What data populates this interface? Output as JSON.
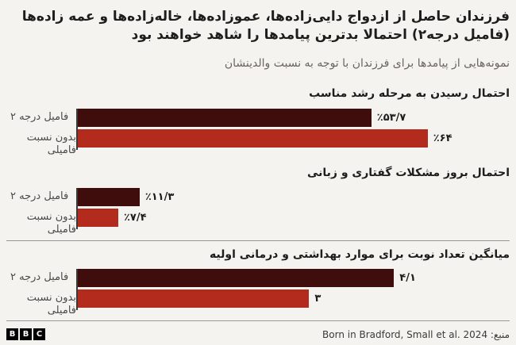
{
  "page": {
    "title": "فرزندان حاصل از ازدواج دایی‌زاده‌ها، عموزاده‌ها، خاله‌زاده‌ها و عمه زاده‌ها (فامیل درجه۲) احتمالا بدترین پیامدها را شاهد خواهند بود",
    "subtitle": "نمونه‌هایی از پیامدها برای فرزندان با توجه به نسبت والدینشان",
    "source_label": "منبع: Born in Bradford, Small et al. 2024",
    "logo_letters": [
      "B",
      "B",
      "C"
    ]
  },
  "colors": {
    "background": "#f4f3f0",
    "bar_dark": "#3f0d0c",
    "bar_red": "#b32b1c",
    "axis_line": "#3a3a38",
    "divider": "#9a9792",
    "title_text": "#1d1d1b",
    "subtitle_text": "#696560",
    "label_text": "#4a4a4a"
  },
  "chart_data": {
    "type": "bar",
    "orientation": "horizontal",
    "categories": [
      "فامیل درجه ۲",
      "بدون نسبت فامیلی"
    ],
    "legend_position": "none",
    "grid": false,
    "sections": [
      {
        "title": "احتمال رسیدن به مرحله رشد مناسب",
        "unit": "percent",
        "scale_max": 79,
        "divider_above": false,
        "bars": [
          {
            "label": "فامیل درجه ۲",
            "value": 53.7,
            "display": "٪۵۳/۷",
            "color": "#3f0d0c"
          },
          {
            "label": "بدون نسبت فامیلی",
            "value": 64,
            "display": "٪۶۴",
            "color": "#b32b1c"
          }
        ]
      },
      {
        "title": "احتمال بروز مشکلات گفتاری و زبانی",
        "unit": "percent",
        "scale_max": 79,
        "divider_above": false,
        "bars": [
          {
            "label": "فامیل درجه ۲",
            "value": 11.3,
            "display": "٪۱۱/۳",
            "color": "#3f0d0c"
          },
          {
            "label": "بدون نسبت فامیلی",
            "value": 7.4,
            "display": "٪۷/۴",
            "color": "#b32b1c"
          }
        ]
      },
      {
        "title": "میانگین تعداد نوبت برای موارد بهداشتی و درمانی اولیه",
        "unit": "count",
        "scale_max": 5.6,
        "divider_above": true,
        "bars": [
          {
            "label": "فامیل درجه ۲",
            "value": 4.1,
            "display": "۴/۱",
            "color": "#3f0d0c"
          },
          {
            "label": "بدون نسبت فامیلی",
            "value": 3,
            "display": "۳",
            "color": "#b32b1c"
          }
        ]
      }
    ]
  }
}
